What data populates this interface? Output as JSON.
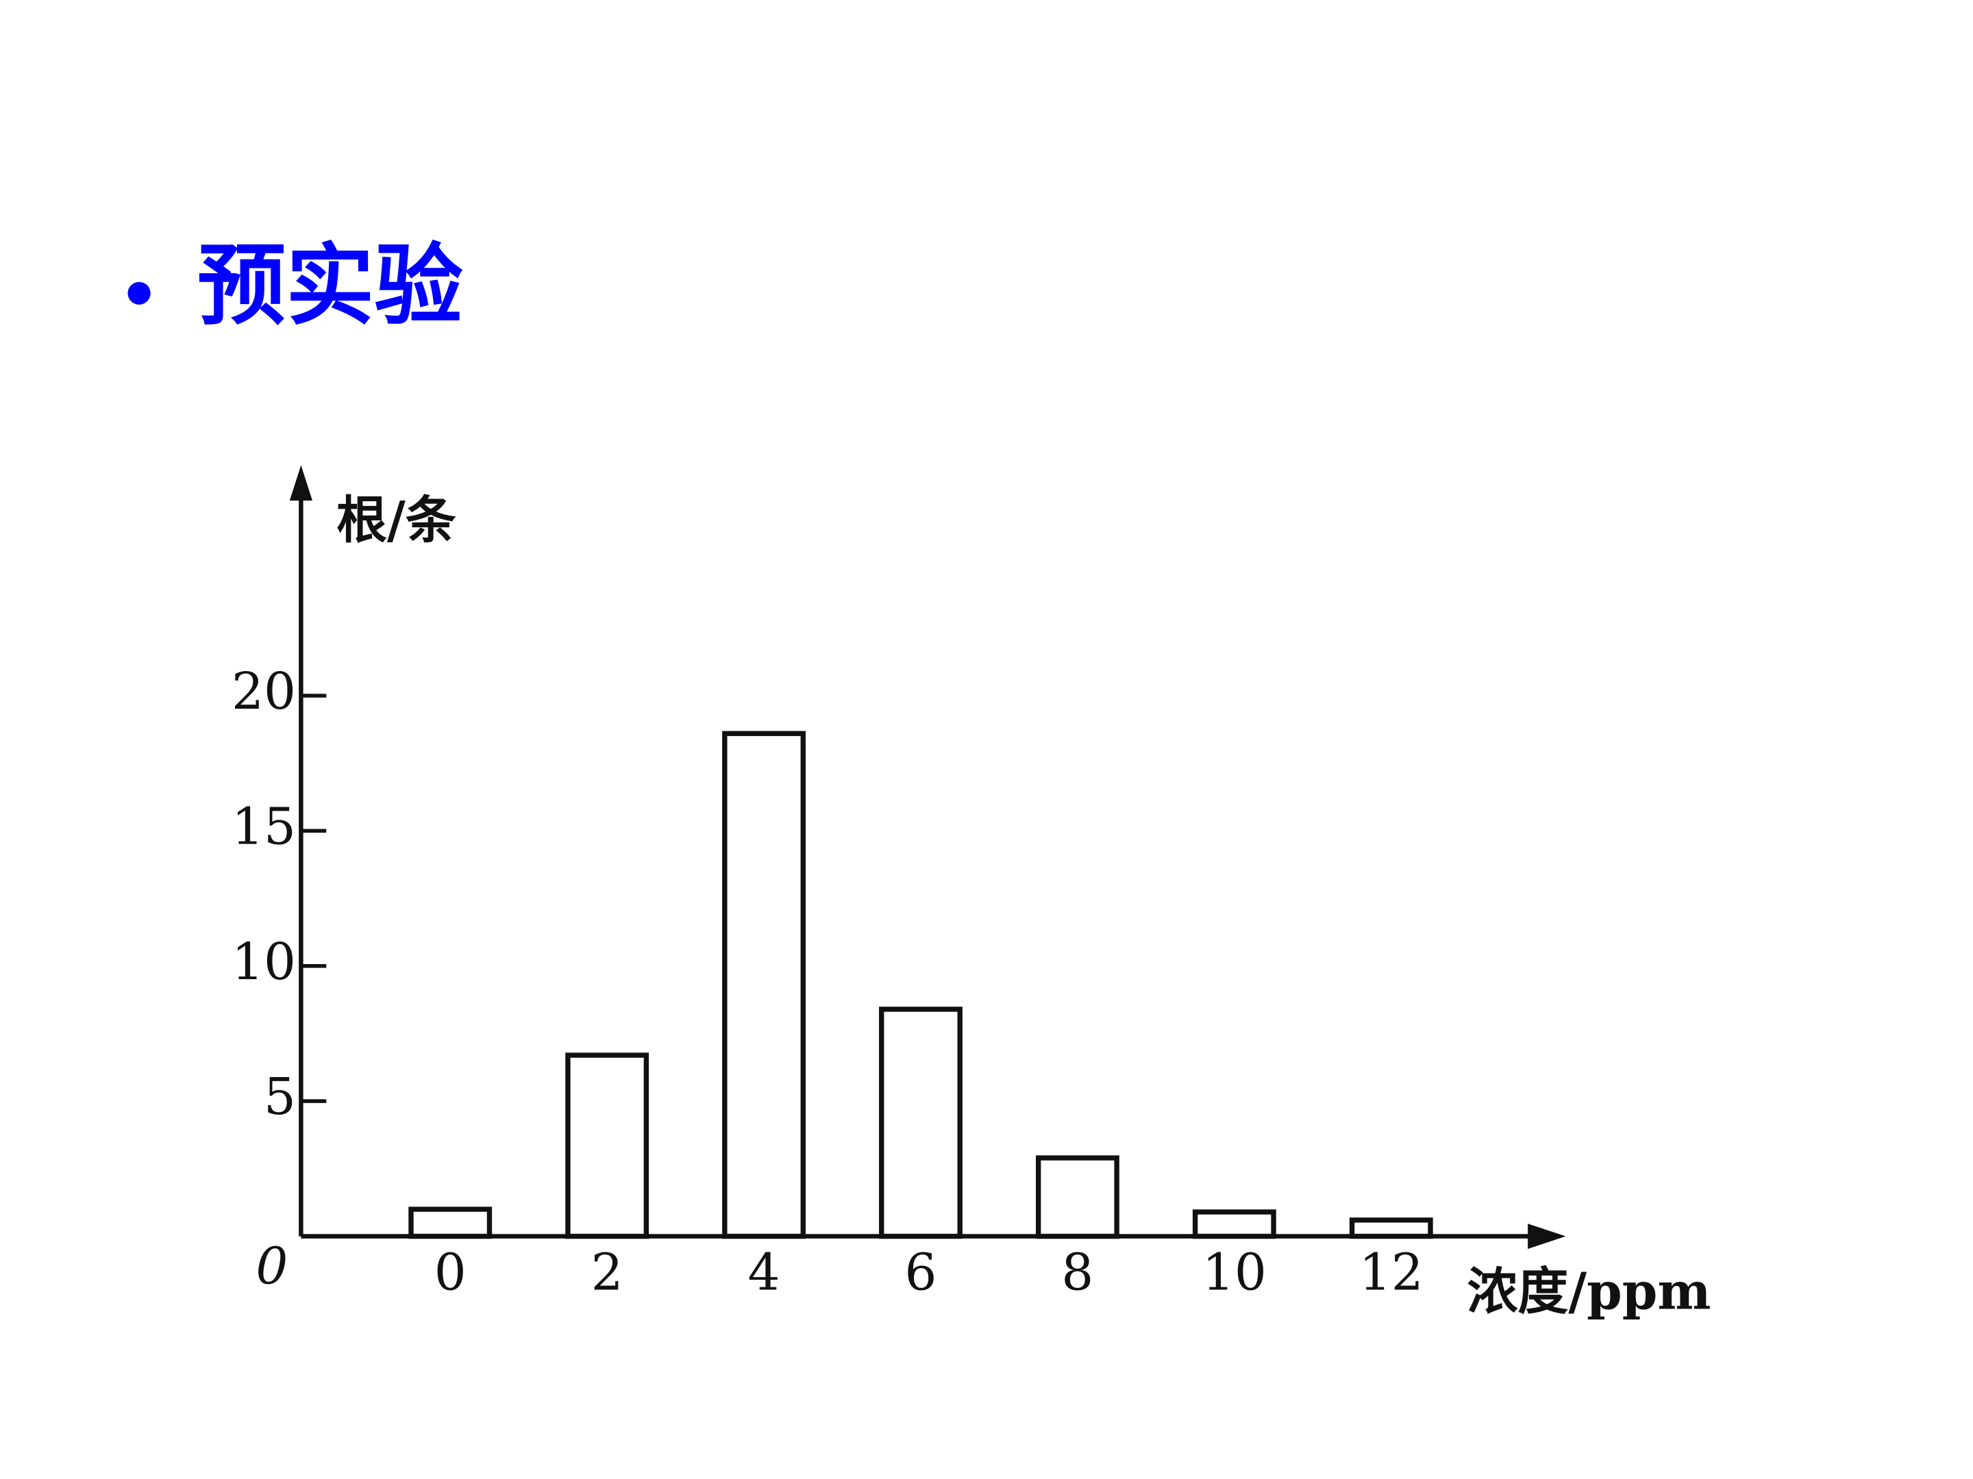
{
  "title": "预实验",
  "chart_data": {
    "type": "bar",
    "y_label": "根/条",
    "x_label": "浓度/ppm",
    "origin_label": "0",
    "categories": [
      "0",
      "2",
      "4",
      "6",
      "8",
      "10",
      "12"
    ],
    "values": [
      1,
      6.7,
      18.6,
      8.4,
      2.9,
      0.9,
      0.6
    ],
    "color": "#ffffff",
    "edge_color": "#111111",
    "ylim": [
      0,
      28.2
    ],
    "yticks": [
      5,
      10,
      15,
      20
    ],
    "grid": false
  }
}
